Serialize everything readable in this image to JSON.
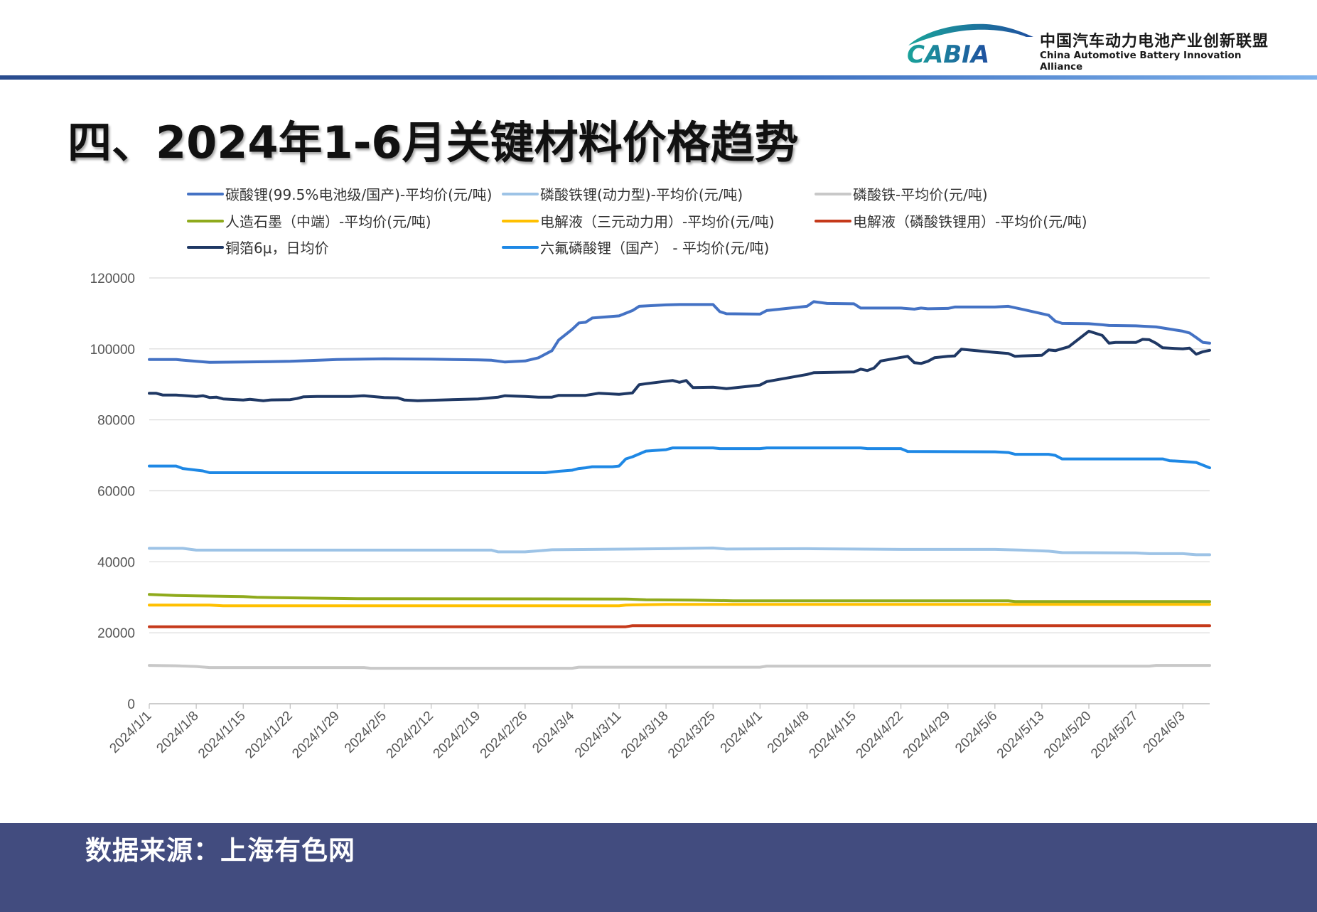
{
  "header": {
    "logo_mark": "CABIA",
    "logo_cn": "中国汽车动力电池产业创新联盟",
    "logo_en": "China Automotive Battery Innovation Alliance"
  },
  "page_title": "四、2024年1-6月关键材料价格趋势",
  "footer": {
    "source": "数据来源：上海有色网"
  },
  "colors": {
    "accent_rule": "#2a4c8e",
    "footer_bg": "#424c7f"
  },
  "chart_data": {
    "type": "line",
    "title": "",
    "xlabel": "",
    "ylabel": "",
    "ylim": [
      0,
      120000
    ],
    "yticks": [
      0,
      20000,
      40000,
      60000,
      80000,
      100000,
      120000
    ],
    "grid": "horizontal",
    "legend_position": "top",
    "x_start": "2024/1/1",
    "x_end": "2024/6/7",
    "x_ticks": [
      "2024/1/1",
      "2024/1/8",
      "2024/1/15",
      "2024/1/22",
      "2024/1/29",
      "2024/2/5",
      "2024/2/12",
      "2024/2/19",
      "2024/2/26",
      "2024/3/4",
      "2024/3/11",
      "2024/3/18",
      "2024/3/25",
      "2024/4/1",
      "2024/4/8",
      "2024/4/15",
      "2024/4/22",
      "2024/4/29",
      "2024/5/6",
      "2024/5/13",
      "2024/5/20",
      "2024/5/27",
      "2024/6/3"
    ],
    "series": [
      {
        "name": "碳酸锂(99.5%电池级/国产)-平均价(元/吨)",
        "color": "#4472c4",
        "points": [
          [
            "2024/1/1",
            97000
          ],
          [
            "2024/1/5",
            97000
          ],
          [
            "2024/1/8",
            96500
          ],
          [
            "2024/1/10",
            96200
          ],
          [
            "2024/1/15",
            96300
          ],
          [
            "2024/1/22",
            96500
          ],
          [
            "2024/1/29",
            97000
          ],
          [
            "2024/2/5",
            97200
          ],
          [
            "2024/2/12",
            97100
          ],
          [
            "2024/2/19",
            96900
          ],
          [
            "2024/2/21",
            96800
          ],
          [
            "2024/2/23",
            96300
          ],
          [
            "2024/2/26",
            96600
          ],
          [
            "2024/2/28",
            97500
          ],
          [
            "2024/3/1",
            99500
          ],
          [
            "2024/3/2",
            102500
          ],
          [
            "2024/3/4",
            105500
          ],
          [
            "2024/3/5",
            107300
          ],
          [
            "2024/3/6",
            107500
          ],
          [
            "2024/3/7",
            108700
          ],
          [
            "2024/3/11",
            109300
          ],
          [
            "2024/3/13",
            110800
          ],
          [
            "2024/3/14",
            112000
          ],
          [
            "2024/3/18",
            112400
          ],
          [
            "2024/3/20",
            112500
          ],
          [
            "2024/3/25",
            112500
          ],
          [
            "2024/3/26",
            110500
          ],
          [
            "2024/3/27",
            109900
          ],
          [
            "2024/4/1",
            109800
          ],
          [
            "2024/4/2",
            110800
          ],
          [
            "2024/4/8",
            112000
          ],
          [
            "2024/4/9",
            113300
          ],
          [
            "2024/4/11",
            112800
          ],
          [
            "2024/4/15",
            112700
          ],
          [
            "2024/4/16",
            111500
          ],
          [
            "2024/4/22",
            111500
          ],
          [
            "2024/4/24",
            111200
          ],
          [
            "2024/4/25",
            111500
          ],
          [
            "2024/4/26",
            111300
          ],
          [
            "2024/4/29",
            111400
          ],
          [
            "2024/4/30",
            111800
          ],
          [
            "2024/5/6",
            111800
          ],
          [
            "2024/5/8",
            112000
          ],
          [
            "2024/5/10",
            111200
          ],
          [
            "2024/5/14",
            109500
          ],
          [
            "2024/5/15",
            107800
          ],
          [
            "2024/5/16",
            107200
          ],
          [
            "2024/5/20",
            107100
          ],
          [
            "2024/5/22",
            106800
          ],
          [
            "2024/5/23",
            106600
          ],
          [
            "2024/5/27",
            106500
          ],
          [
            "2024/5/30",
            106200
          ],
          [
            "2024/6/3",
            105000
          ],
          [
            "2024/6/4",
            104500
          ],
          [
            "2024/6/5",
            103200
          ],
          [
            "2024/6/6",
            101800
          ],
          [
            "2024/6/7",
            101600
          ]
        ]
      },
      {
        "name": "磷酸铁锂(动力型)-平均价(元/吨)",
        "color": "#9dc3e6",
        "points": [
          [
            "2024/1/1",
            43800
          ],
          [
            "2024/1/6",
            43800
          ],
          [
            "2024/1/8",
            43300
          ],
          [
            "2024/2/5",
            43300
          ],
          [
            "2024/2/21",
            43300
          ],
          [
            "2024/2/22",
            42800
          ],
          [
            "2024/2/26",
            42800
          ],
          [
            "2024/3/1",
            43400
          ],
          [
            "2024/3/18",
            43700
          ],
          [
            "2024/3/25",
            43900
          ],
          [
            "2024/3/27",
            43600
          ],
          [
            "2024/4/8",
            43700
          ],
          [
            "2024/4/15",
            43600
          ],
          [
            "2024/4/22",
            43500
          ],
          [
            "2024/5/6",
            43500
          ],
          [
            "2024/5/10",
            43300
          ],
          [
            "2024/5/14",
            43000
          ],
          [
            "2024/5/16",
            42600
          ],
          [
            "2024/5/27",
            42500
          ],
          [
            "2024/5/29",
            42300
          ],
          [
            "2024/6/3",
            42300
          ],
          [
            "2024/6/5",
            42000
          ],
          [
            "2024/6/7",
            42000
          ]
        ]
      },
      {
        "name": "磷酸铁-平均价(元/吨)",
        "color": "#c8c8c8",
        "points": [
          [
            "2024/1/1",
            10800
          ],
          [
            "2024/1/5",
            10700
          ],
          [
            "2024/1/8",
            10500
          ],
          [
            "2024/1/10",
            10200
          ],
          [
            "2024/1/15",
            10200
          ],
          [
            "2024/2/2",
            10200
          ],
          [
            "2024/2/3",
            10000
          ],
          [
            "2024/3/4",
            10000
          ],
          [
            "2024/3/5",
            10300
          ],
          [
            "2024/4/1",
            10300
          ],
          [
            "2024/4/2",
            10600
          ],
          [
            "2024/5/29",
            10600
          ],
          [
            "2024/5/30",
            10800
          ],
          [
            "2024/6/7",
            10800
          ]
        ]
      },
      {
        "name": "人造石墨（中端）-平均价(元/吨)",
        "color": "#8faa1c",
        "points": [
          [
            "2024/1/1",
            30800
          ],
          [
            "2024/1/5",
            30500
          ],
          [
            "2024/1/8",
            30400
          ],
          [
            "2024/1/15",
            30200
          ],
          [
            "2024/1/17",
            30000
          ],
          [
            "2024/1/24",
            29800
          ],
          [
            "2024/2/1",
            29600
          ],
          [
            "2024/3/12",
            29500
          ],
          [
            "2024/3/15",
            29300
          ],
          [
            "2024/3/22",
            29200
          ],
          [
            "2024/3/28",
            29000
          ],
          [
            "2024/5/8",
            29000
          ],
          [
            "2024/5/9",
            28800
          ],
          [
            "2024/6/7",
            28800
          ]
        ]
      },
      {
        "name": "电解液（三元动力用）-平均价(元/吨)",
        "color": "#ffc000",
        "points": [
          [
            "2024/1/1",
            27800
          ],
          [
            "2024/1/10",
            27800
          ],
          [
            "2024/1/12",
            27600
          ],
          [
            "2024/3/11",
            27600
          ],
          [
            "2024/3/12",
            27800
          ],
          [
            "2024/3/18",
            28000
          ],
          [
            "2024/6/7",
            28000
          ]
        ]
      },
      {
        "name": "电解液（磷酸铁锂用）-平均价(元/吨)",
        "color": "#c5391a",
        "points": [
          [
            "2024/1/1",
            21700
          ],
          [
            "2024/3/12",
            21700
          ],
          [
            "2024/3/13",
            22000
          ],
          [
            "2024/6/7",
            22000
          ]
        ]
      },
      {
        "name": "铜箔6μ，日均价",
        "color": "#1f3864",
        "points": [
          [
            "2024/1/1",
            87500
          ],
          [
            "2024/1/2",
            87500
          ],
          [
            "2024/1/3",
            87000
          ],
          [
            "2024/1/5",
            87000
          ],
          [
            "2024/1/8",
            86600
          ],
          [
            "2024/1/9",
            86800
          ],
          [
            "2024/1/10",
            86300
          ],
          [
            "2024/1/11",
            86400
          ],
          [
            "2024/1/12",
            85900
          ],
          [
            "2024/1/15",
            85600
          ],
          [
            "2024/1/16",
            85800
          ],
          [
            "2024/1/18",
            85400
          ],
          [
            "2024/1/19",
            85600
          ],
          [
            "2024/1/22",
            85700
          ],
          [
            "2024/1/23",
            86000
          ],
          [
            "2024/1/24",
            86500
          ],
          [
            "2024/1/26",
            86600
          ],
          [
            "2024/1/31",
            86600
          ],
          [
            "2024/2/2",
            86800
          ],
          [
            "2024/2/5",
            86300
          ],
          [
            "2024/2/7",
            86200
          ],
          [
            "2024/2/8",
            85600
          ],
          [
            "2024/2/10",
            85400
          ],
          [
            "2024/2/19",
            85900
          ],
          [
            "2024/2/22",
            86400
          ],
          [
            "2024/2/23",
            86800
          ],
          [
            "2024/2/26",
            86600
          ],
          [
            "2024/2/28",
            86400
          ],
          [
            "2024/3/1",
            86400
          ],
          [
            "2024/3/2",
            86900
          ],
          [
            "2024/3/6",
            86900
          ],
          [
            "2024/3/8",
            87500
          ],
          [
            "2024/3/11",
            87200
          ],
          [
            "2024/3/13",
            87600
          ],
          [
            "2024/3/14",
            89900
          ],
          [
            "2024/3/15",
            90200
          ],
          [
            "2024/3/18",
            90900
          ],
          [
            "2024/3/19",
            91100
          ],
          [
            "2024/3/20",
            90600
          ],
          [
            "2024/3/21",
            91100
          ],
          [
            "2024/3/22",
            89100
          ],
          [
            "2024/3/25",
            89200
          ],
          [
            "2024/3/27",
            88800
          ],
          [
            "2024/4/1",
            89800
          ],
          [
            "2024/4/2",
            90800
          ],
          [
            "2024/4/8",
            92800
          ],
          [
            "2024/4/9",
            93300
          ],
          [
            "2024/4/15",
            93500
          ],
          [
            "2024/4/16",
            94300
          ],
          [
            "2024/4/17",
            93900
          ],
          [
            "2024/4/18",
            94600
          ],
          [
            "2024/4/19",
            96600
          ],
          [
            "2024/4/22",
            97600
          ],
          [
            "2024/4/23",
            97900
          ],
          [
            "2024/4/24",
            96100
          ],
          [
            "2024/4/25",
            95900
          ],
          [
            "2024/4/26",
            96500
          ],
          [
            "2024/4/27",
            97500
          ],
          [
            "2024/4/29",
            97900
          ],
          [
            "2024/4/30",
            98000
          ],
          [
            "2024/5/1",
            99900
          ],
          [
            "2024/5/6",
            99000
          ],
          [
            "2024/5/8",
            98700
          ],
          [
            "2024/5/9",
            97900
          ],
          [
            "2024/5/10",
            98000
          ],
          [
            "2024/5/13",
            98200
          ],
          [
            "2024/5/14",
            99700
          ],
          [
            "2024/5/15",
            99500
          ],
          [
            "2024/5/17",
            100600
          ],
          [
            "2024/5/20",
            105000
          ],
          [
            "2024/5/22",
            103800
          ],
          [
            "2024/5/23",
            101600
          ],
          [
            "2024/5/24",
            101800
          ],
          [
            "2024/5/27",
            101800
          ],
          [
            "2024/5/28",
            102700
          ],
          [
            "2024/5/29",
            102600
          ],
          [
            "2024/5/30",
            101600
          ],
          [
            "2024/5/31",
            100300
          ],
          [
            "2024/6/3",
            100000
          ],
          [
            "2024/6/4",
            100200
          ],
          [
            "2024/6/5",
            98500
          ],
          [
            "2024/6/6",
            99200
          ],
          [
            "2024/6/7",
            99600
          ]
        ]
      },
      {
        "name": "六氟磷酸锂（国产） - 平均价(元/吨)",
        "color": "#1e88e5",
        "points": [
          [
            "2024/1/1",
            67000
          ],
          [
            "2024/1/5",
            67000
          ],
          [
            "2024/1/6",
            66300
          ],
          [
            "2024/1/9",
            65600
          ],
          [
            "2024/1/10",
            65100
          ],
          [
            "2024/2/29",
            65100
          ],
          [
            "2024/3/2",
            65500
          ],
          [
            "2024/3/4",
            65800
          ],
          [
            "2024/3/5",
            66300
          ],
          [
            "2024/3/6",
            66500
          ],
          [
            "2024/3/7",
            66800
          ],
          [
            "2024/3/10",
            66800
          ],
          [
            "2024/3/11",
            67000
          ],
          [
            "2024/3/12",
            69000
          ],
          [
            "2024/3/13",
            69600
          ],
          [
            "2024/3/15",
            71200
          ],
          [
            "2024/3/18",
            71600
          ],
          [
            "2024/3/19",
            72100
          ],
          [
            "2024/3/25",
            72100
          ],
          [
            "2024/3/26",
            71900
          ],
          [
            "2024/4/1",
            71900
          ],
          [
            "2024/4/2",
            72100
          ],
          [
            "2024/4/16",
            72100
          ],
          [
            "2024/4/17",
            71900
          ],
          [
            "2024/4/22",
            71900
          ],
          [
            "2024/4/23",
            71100
          ],
          [
            "2024/5/6",
            71000
          ],
          [
            "2024/5/8",
            70800
          ],
          [
            "2024/5/9",
            70300
          ],
          [
            "2024/5/14",
            70300
          ],
          [
            "2024/5/15",
            70000
          ],
          [
            "2024/5/16",
            69000
          ],
          [
            "2024/5/31",
            69000
          ],
          [
            "2024/6/1",
            68500
          ],
          [
            "2024/6/3",
            68300
          ],
          [
            "2024/6/5",
            68000
          ],
          [
            "2024/6/7",
            66500
          ]
        ]
      }
    ]
  }
}
